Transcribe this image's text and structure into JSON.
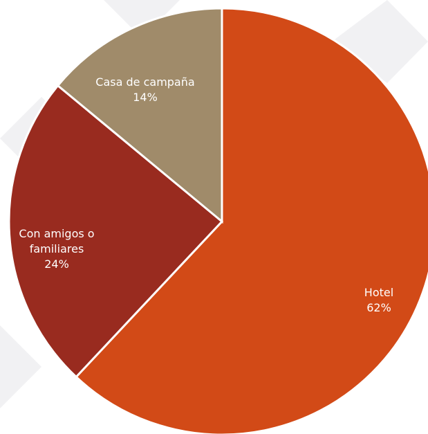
{
  "chart_data": {
    "type": "pie",
    "categories": [
      "Hotel",
      "Con amigos o familiares",
      "Casa de campaña"
    ],
    "values": [
      62,
      24,
      14
    ],
    "value_labels": [
      "62%",
      "24%",
      "14%"
    ],
    "colors": [
      "#d24a17",
      "#992b1f",
      "#a08b6a"
    ]
  }
}
